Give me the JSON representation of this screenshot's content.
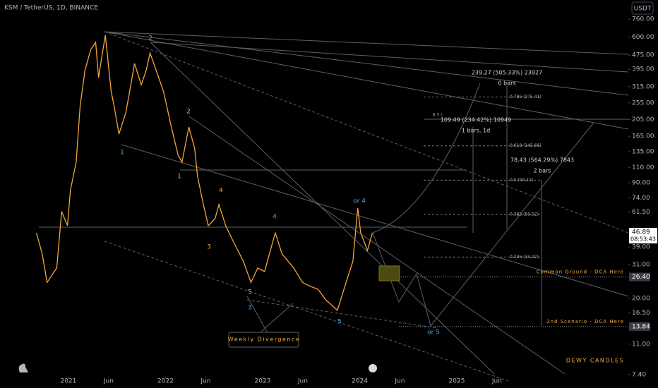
{
  "chart_data": {
    "type": "line",
    "title": "KSM / TetherUS, 1D, BINANCE",
    "currency": "USDT",
    "log_scale": true,
    "grid": false,
    "xlim": [
      2020.295,
      2026.767
    ],
    "xticks": [
      {
        "value": 2021.0,
        "label": "2021"
      },
      {
        "value": 2021.414,
        "label": "Jun"
      },
      {
        "value": 2022.0,
        "label": "2022"
      },
      {
        "value": 2022.414,
        "label": "Jun"
      },
      {
        "value": 2023.0,
        "label": "2023"
      },
      {
        "value": 2023.414,
        "label": "Jun"
      },
      {
        "value": 2024.0,
        "label": "2024"
      },
      {
        "value": 2024.414,
        "label": "Jun"
      },
      {
        "value": 2025.0,
        "label": "2025"
      },
      {
        "value": 2025.414,
        "label": "Jun"
      }
    ],
    "ylim": [
      7.33,
      974
    ],
    "yticks": [
      {
        "value": 760,
        "label": "760.00"
      },
      {
        "value": 600,
        "label": "600.00"
      },
      {
        "value": 475,
        "label": "475.00"
      },
      {
        "value": 395,
        "label": "395.00"
      },
      {
        "value": 315,
        "label": "315.00"
      },
      {
        "value": 255,
        "label": "255.00"
      },
      {
        "value": 205,
        "label": "205.00"
      },
      {
        "value": 165,
        "label": "165.00"
      },
      {
        "value": 135,
        "label": "135.00"
      },
      {
        "value": 110,
        "label": "110.00"
      },
      {
        "value": 90,
        "label": "90.00"
      },
      {
        "value": 74,
        "label": "74.00"
      },
      {
        "value": 61.5,
        "label": "61.50"
      },
      {
        "value": 39,
        "label": "39.00"
      },
      {
        "value": 31,
        "label": "31.00"
      },
      {
        "value": 20,
        "label": "20.00"
      },
      {
        "value": 16.5,
        "label": "16.50"
      },
      {
        "value": 11,
        "label": "11.00"
      },
      {
        "value": 7.4,
        "label": "7.40"
      }
    ],
    "series": [
      {
        "name": "KSM/USDT",
        "color": "#f5a53a",
        "x": [
          2020.67,
          2020.73,
          2020.78,
          2020.88,
          2020.93,
          2020.99,
          2021.02,
          2021.08,
          2021.12,
          2021.17,
          2021.23,
          2021.28,
          2021.31,
          2021.35,
          2021.38,
          2021.44,
          2021.47,
          2021.52,
          2021.59,
          2021.63,
          2021.68,
          2021.75,
          2021.8,
          2021.84,
          2021.93,
          2021.98,
          2022.06,
          2022.13,
          2022.17,
          2022.24,
          2022.3,
          2022.33,
          2022.39,
          2022.44,
          2022.51,
          2022.55,
          2022.62,
          2022.69,
          2022.8,
          2022.88,
          2022.95,
          2023.02,
          2023.13,
          2023.2,
          2023.32,
          2023.41,
          2023.48,
          2023.57,
          2023.65,
          2023.77,
          2023.86,
          2023.93,
          2023.98,
          2024.01,
          2024.08,
          2024.13
        ],
        "values": [
          46.9,
          35.6,
          24.6,
          29.7,
          61.9,
          51.5,
          81.6,
          118,
          245,
          389,
          512,
          561,
          354,
          489,
          615,
          295,
          245,
          170,
          224,
          295,
          426,
          323,
          389,
          489,
          354,
          295,
          186,
          129,
          118,
          186,
          141,
          98,
          67.8,
          51.5,
          56.4,
          67.8,
          51.5,
          42.8,
          32.5,
          24.6,
          29.7,
          28.3,
          46.9,
          35.6,
          29.7,
          24.6,
          23.5,
          22.5,
          19.6,
          17.1,
          24.6,
          32.5,
          64.8,
          46.9,
          37.3,
          46.9
        ]
      }
    ],
    "last_price": {
      "value": 46.89,
      "label": "46.89",
      "countdown": "08:53:43"
    },
    "hlines": [
      {
        "value": 26.4,
        "label": "26.40",
        "text": "Common Ground - DCA Here",
        "color": "#f5a53a"
      },
      {
        "value": 13.84,
        "label": "13.84",
        "text": "2nd Scenario - DCA Here",
        "color": "#f5a53a"
      }
    ],
    "fib_levels": [
      {
        "value": 275.41,
        "label": "0.786 (275.41)"
      },
      {
        "value": 145.66,
        "label": "0.618 (145.66)"
      },
      {
        "value": 93.11,
        "label": "0.5 (93.11)"
      },
      {
        "value": 59.52,
        "label": "0.382 (59.52)"
      },
      {
        "value": 34.22,
        "label": "0.236 (34.22)"
      }
    ],
    "annotations": [
      "2",
      "1",
      "2",
      "1",
      "4",
      "3",
      "4",
      "5",
      "3",
      "5",
      "or 4",
      "or 5",
      "B.S L",
      "239.27 (505.33%) 23927",
      "0 bars",
      "109.49 (234.42%) 10949",
      "1 bars, 1d",
      "78.43 (564.29%) 7843",
      "2 bars",
      "Weekly Divergence",
      "DEWY CANDLES"
    ]
  }
}
